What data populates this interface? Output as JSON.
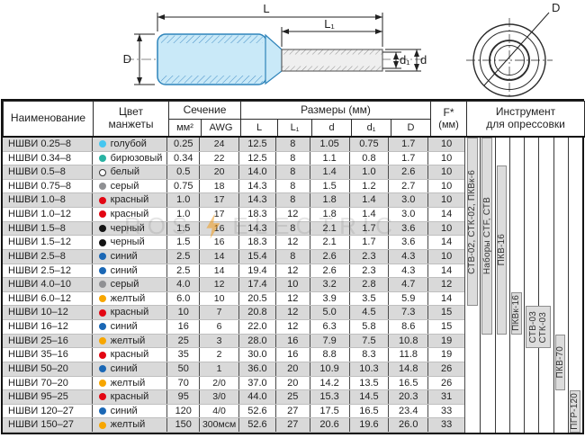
{
  "diagram": {
    "dim_labels": {
      "L": "L",
      "L1": "L₁",
      "d": "d",
      "d1": "d₁",
      "D_side": "D",
      "D_circle": "D"
    }
  },
  "watermark": {
    "left": "ROS",
    "right": "ELECTRIC"
  },
  "table": {
    "headers": {
      "name": "Наименование",
      "color": "Цвет манжеты",
      "section": "Сечение",
      "mm2": "мм²",
      "awg": "AWG",
      "sizes": "Размеры (мм)",
      "L": "L",
      "L1": "L₁",
      "d": "d",
      "d1": "d₁",
      "D": "D",
      "F": "F*",
      "F_unit": "(мм)",
      "tool_line1": "Инструмент",
      "tool_line2": "для опрессовки"
    },
    "rows": [
      {
        "name": "НШВИ 0.25–8",
        "color": "голубой",
        "hex": "#45c6f0",
        "mm2": "0.25",
        "awg": "24",
        "L": "12.5",
        "L1": "8",
        "d": "1.05",
        "d1": "0.75",
        "D": "1.7",
        "F": "10"
      },
      {
        "name": "НШВИ 0.34–8",
        "color": "бирюзовый",
        "hex": "#2ab3a3",
        "mm2": "0.34",
        "awg": "22",
        "L": "12.5",
        "L1": "8",
        "d": "1.1",
        "d1": "0.8",
        "D": "1.7",
        "F": "10"
      },
      {
        "name": "НШВИ 0.5–8",
        "color": "белый",
        "hex": "#ffffff",
        "mm2": "0.5",
        "awg": "20",
        "L": "14.0",
        "L1": "8",
        "d": "1.4",
        "d1": "1.0",
        "D": "2.6",
        "F": "10"
      },
      {
        "name": "НШВИ 0.75–8",
        "color": "серый",
        "hex": "#8f9093",
        "mm2": "0.75",
        "awg": "18",
        "L": "14.3",
        "L1": "8",
        "d": "1.5",
        "d1": "1.2",
        "D": "2.7",
        "F": "10"
      },
      {
        "name": "НШВИ 1.0–8",
        "color": "красный",
        "hex": "#e30613",
        "mm2": "1.0",
        "awg": "17",
        "L": "14.3",
        "L1": "8",
        "d": "1.8",
        "d1": "1.4",
        "D": "3.0",
        "F": "10"
      },
      {
        "name": "НШВИ 1.0–12",
        "color": "красный",
        "hex": "#e30613",
        "mm2": "1.0",
        "awg": "17",
        "L": "18.3",
        "L1": "12",
        "d": "1.8",
        "d1": "1.4",
        "D": "3.0",
        "F": "14"
      },
      {
        "name": "НШВИ 1.5–8",
        "color": "черный",
        "hex": "#141414",
        "mm2": "1.5",
        "awg": "16",
        "L": "14.3",
        "L1": "8",
        "d": "2.1",
        "d1": "1.7",
        "D": "3.6",
        "F": "10"
      },
      {
        "name": "НШВИ 1.5–12",
        "color": "черный",
        "hex": "#141414",
        "mm2": "1.5",
        "awg": "16",
        "L": "18.3",
        "L1": "12",
        "d": "2.1",
        "d1": "1.7",
        "D": "3.6",
        "F": "14"
      },
      {
        "name": "НШВИ 2.5–8",
        "color": "синий",
        "hex": "#1a67b5",
        "mm2": "2.5",
        "awg": "14",
        "L": "15.4",
        "L1": "8",
        "d": "2.6",
        "d1": "2.3",
        "D": "4.3",
        "F": "10"
      },
      {
        "name": "НШВИ 2.5–12",
        "color": "синий",
        "hex": "#1a67b5",
        "mm2": "2.5",
        "awg": "14",
        "L": "19.4",
        "L1": "12",
        "d": "2.6",
        "d1": "2.3",
        "D": "4.3",
        "F": "14"
      },
      {
        "name": "НШВИ 4.0–10",
        "color": "серый",
        "hex": "#8f9093",
        "mm2": "4.0",
        "awg": "12",
        "L": "17.4",
        "L1": "10",
        "d": "3.2",
        "d1": "2.8",
        "D": "4.7",
        "F": "12"
      },
      {
        "name": "НШВИ 6.0–12",
        "color": "желтый",
        "hex": "#f7a600",
        "mm2": "6.0",
        "awg": "10",
        "L": "20.5",
        "L1": "12",
        "d": "3.9",
        "d1": "3.5",
        "D": "5.9",
        "F": "14"
      },
      {
        "name": "НШВИ 10–12",
        "color": "красный",
        "hex": "#e30613",
        "mm2": "10",
        "awg": "7",
        "L": "20.8",
        "L1": "12",
        "d": "5.0",
        "d1": "4.5",
        "D": "7.3",
        "F": "15"
      },
      {
        "name": "НШВИ 16–12",
        "color": "синий",
        "hex": "#1a67b5",
        "mm2": "16",
        "awg": "6",
        "L": "22.0",
        "L1": "12",
        "d": "6.3",
        "d1": "5.8",
        "D": "8.6",
        "F": "15"
      },
      {
        "name": "НШВИ 25–16",
        "color": "желтый",
        "hex": "#f7a600",
        "mm2": "25",
        "awg": "3",
        "L": "28.0",
        "L1": "16",
        "d": "7.9",
        "d1": "7.5",
        "D": "10.8",
        "F": "19"
      },
      {
        "name": "НШВИ 35–16",
        "color": "красный",
        "hex": "#e30613",
        "mm2": "35",
        "awg": "2",
        "L": "30.0",
        "L1": "16",
        "d": "8.8",
        "d1": "8.3",
        "D": "11.8",
        "F": "19"
      },
      {
        "name": "НШВИ 50–20",
        "color": "синий",
        "hex": "#1a67b5",
        "mm2": "50",
        "awg": "1",
        "L": "36.0",
        "L1": "20",
        "d": "10.9",
        "d1": "10.3",
        "D": "14.8",
        "F": "26"
      },
      {
        "name": "НШВИ 70–20",
        "color": "желтый",
        "hex": "#f7a600",
        "mm2": "70",
        "awg": "2/0",
        "L": "37.0",
        "L1": "20",
        "d": "14.2",
        "d1": "13.5",
        "D": "16.5",
        "F": "26"
      },
      {
        "name": "НШВИ 95–25",
        "color": "красный",
        "hex": "#e30613",
        "mm2": "95",
        "awg": "3/0",
        "L": "44.0",
        "L1": "25",
        "d": "15.3",
        "d1": "14.5",
        "D": "20.3",
        "F": "31"
      },
      {
        "name": "НШВИ 120–27",
        "color": "синий",
        "hex": "#1a67b5",
        "mm2": "120",
        "awg": "4/0",
        "L": "52.6",
        "L1": "27",
        "d": "17.5",
        "d1": "16.5",
        "D": "23.4",
        "F": "33"
      },
      {
        "name": "НШВИ 150–27",
        "color": "желтый",
        "hex": "#f7a600",
        "mm2": "150",
        "awg": "300мсм",
        "L": "52.6",
        "L1": "27",
        "d": "20.6",
        "d1": "19.6",
        "D": "26.0",
        "F": "33"
      }
    ],
    "tools": [
      {
        "labels": [
          "СТВ-02, СТК-02, ПКВк-6"
        ],
        "col": 0,
        "span": 1,
        "from": 1,
        "to": 12
      },
      {
        "labels": [
          "Наборы CTF, СТВ"
        ],
        "col": 1,
        "span": 1,
        "from": 1,
        "to": 14
      },
      {
        "labels": [
          "ПКВ-16"
        ],
        "col": 2,
        "span": 1,
        "from": 3,
        "to": 14
      },
      {
        "labels": [
          "ПКВк-16"
        ],
        "col": 3,
        "span": 1,
        "from": 12,
        "to": 14
      },
      {
        "labels": [
          "СТВ-03",
          "СТК-03"
        ],
        "col": 4,
        "span": 2,
        "from": 13,
        "to": 15
      },
      {
        "labels": [
          "ПКВ-70"
        ],
        "col": 6,
        "span": 1,
        "from": 15,
        "to": 18
      },
      {
        "labels": [
          "ПГР-120"
        ],
        "col": 7,
        "span": 1,
        "from": 19,
        "to": 21
      }
    ]
  }
}
